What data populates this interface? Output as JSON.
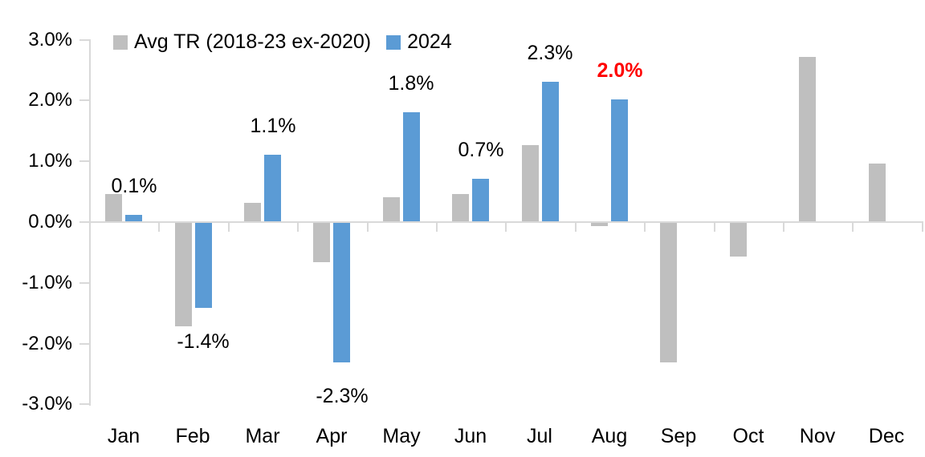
{
  "chart_data": {
    "type": "bar",
    "title": "",
    "categories": [
      "Jan",
      "Feb",
      "Mar",
      "Apr",
      "May",
      "Jun",
      "Jul",
      "Aug",
      "Sep",
      "Oct",
      "Nov",
      "Dec"
    ],
    "series": [
      {
        "name": "Avg TR (2018-23 ex-2020)",
        "color": "#bfbfbf",
        "values": [
          0.45,
          -1.7,
          0.3,
          -0.65,
          0.4,
          0.45,
          1.25,
          -0.05,
          -2.3,
          -0.55,
          2.7,
          0.95
        ]
      },
      {
        "name": "2024",
        "color": "#5b9bd5",
        "values": [
          0.1,
          -1.4,
          1.1,
          -2.3,
          1.8,
          0.7,
          2.3,
          2.0,
          null,
          null,
          null,
          null
        ]
      }
    ],
    "data_labels": [
      {
        "category": "Jan",
        "index": 0,
        "text": "0.1%",
        "color": "#000000",
        "bold": false
      },
      {
        "category": "Feb",
        "index": 1,
        "text": "-1.4%",
        "color": "#000000",
        "bold": false
      },
      {
        "category": "Mar",
        "index": 2,
        "text": "1.1%",
        "color": "#000000",
        "bold": false
      },
      {
        "category": "Apr",
        "index": 3,
        "text": "-2.3%",
        "color": "#000000",
        "bold": false
      },
      {
        "category": "May",
        "index": 4,
        "text": "1.8%",
        "color": "#000000",
        "bold": false
      },
      {
        "category": "Jun",
        "index": 5,
        "text": "0.7%",
        "color": "#000000",
        "bold": false
      },
      {
        "category": "Jul",
        "index": 6,
        "text": "2.3%",
        "color": "#000000",
        "bold": false
      },
      {
        "category": "Aug",
        "index": 7,
        "text": "2.0%",
        "color": "#ff0000",
        "bold": true
      }
    ],
    "y_axis": {
      "tick_labels": [
        "3.0%",
        "2.0%",
        "1.0%",
        "0.0%",
        "-1.0%",
        "-2.0%",
        "-3.0%"
      ],
      "min": -3.0,
      "max": 3.0,
      "step": 1.0
    },
    "legend": {
      "position": "top",
      "entries": [
        {
          "label": "Avg TR (2018-23 ex-2020)",
          "color": "#bfbfbf"
        },
        {
          "label": "2024",
          "color": "#5b9bd5"
        }
      ]
    },
    "grid": false,
    "axis_color": "#d9d9d9",
    "text_color": "#000000"
  }
}
